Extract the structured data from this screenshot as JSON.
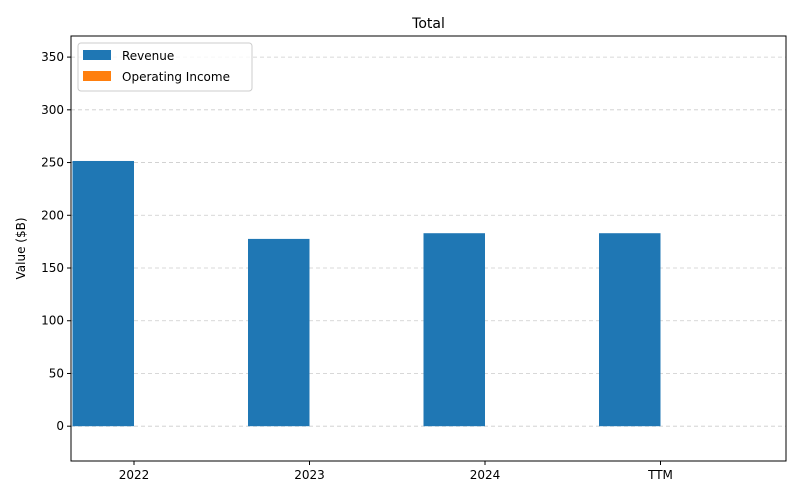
{
  "chart_data": {
    "type": "bar",
    "title": "Total",
    "xlabel": "",
    "ylabel": "Value ($B)",
    "categories": [
      "2022",
      "2023",
      "2024",
      "TTM"
    ],
    "series": [
      {
        "name": "Revenue",
        "color": "#1f77b4",
        "values": [
          251.5,
          177.6,
          183.0,
          183.0
        ]
      },
      {
        "name": "Operating Income",
        "color": "#ff7f0e",
        "values": [
          0,
          0,
          0,
          0
        ]
      }
    ],
    "ylim": [
      -33,
      370
    ],
    "yticks": [
      0,
      50,
      100,
      150,
      200,
      250,
      300,
      350
    ],
    "grid": true,
    "legend_position": "top-left"
  }
}
